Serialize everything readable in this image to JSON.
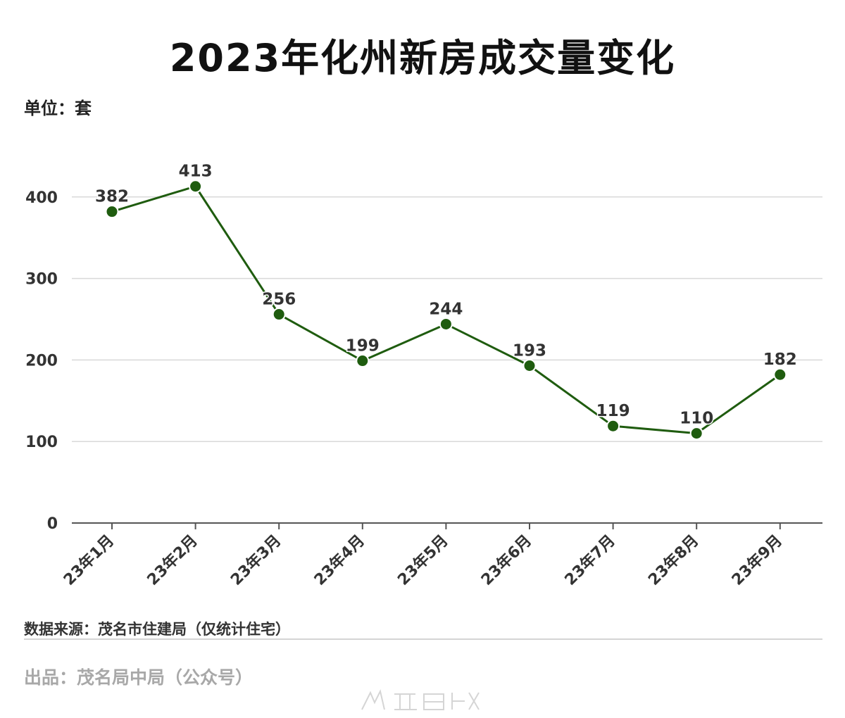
{
  "chart_data": {
    "type": "line",
    "title": "2023年化州新房成交量变化",
    "ylabel": "单位：套",
    "categories": [
      "23年1月",
      "23年2月",
      "23年3月",
      "23年4月",
      "23年5月",
      "23年6月",
      "23年7月",
      "23年8月",
      "23年9月"
    ],
    "values": [
      382,
      413,
      256,
      199,
      244,
      193,
      119,
      110,
      182
    ],
    "ylim": [
      0,
      400
    ],
    "yticks": [
      0,
      100,
      200,
      300,
      400
    ],
    "grid": true,
    "line_color": "#1f5c0f",
    "marker_color": "#1f5c0f"
  },
  "footer": {
    "source": "数据来源：茂名市住建局（仅统计住宅）",
    "producer": "出品：茂名局中局（公众号）"
  }
}
